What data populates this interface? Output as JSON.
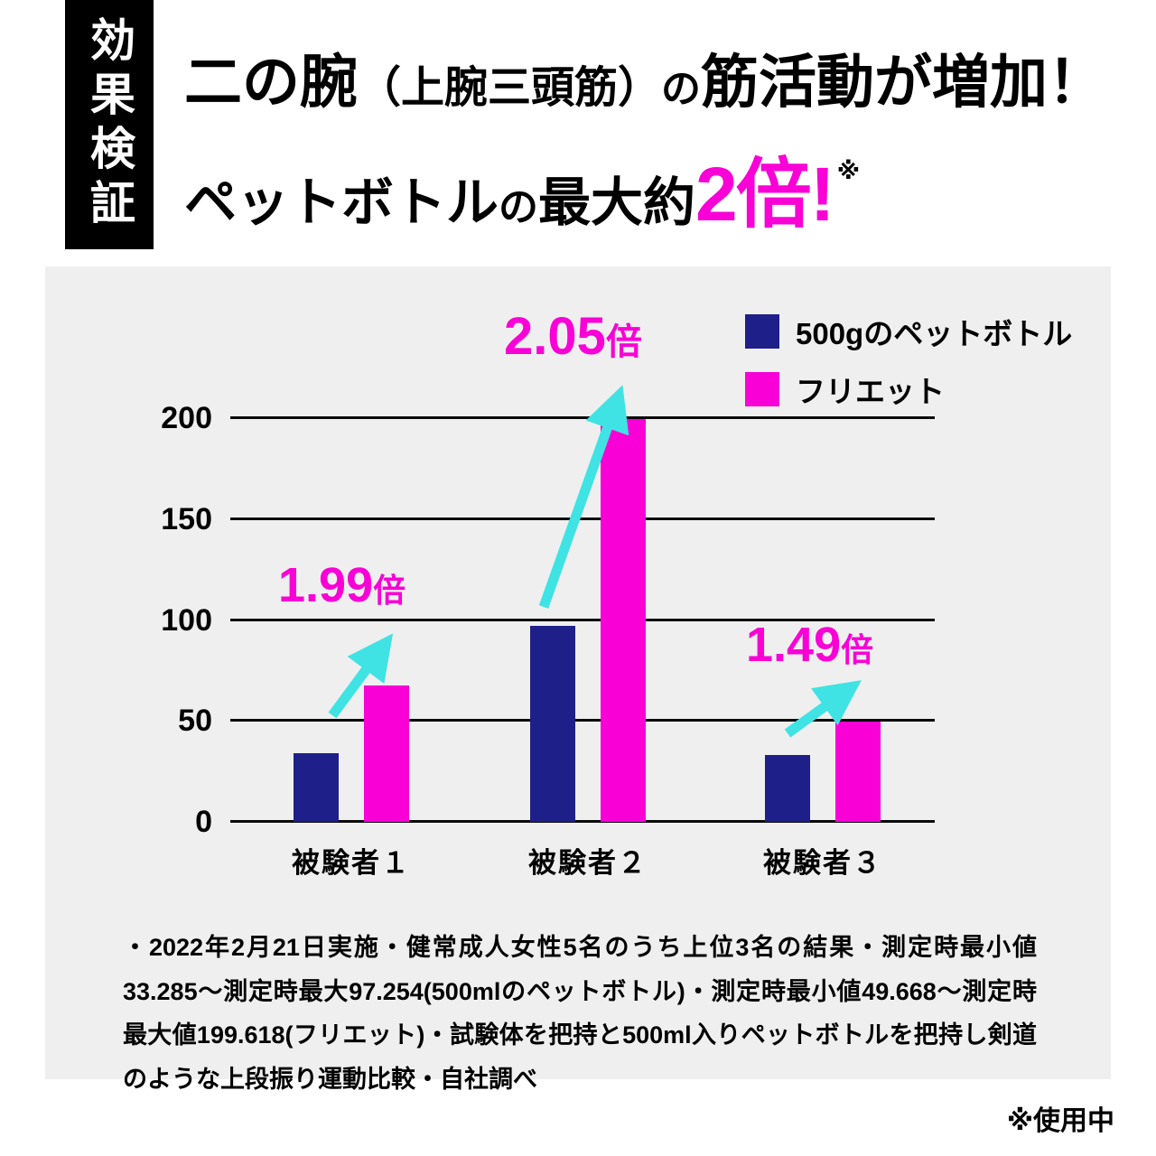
{
  "badge": {
    "label": "効果検証"
  },
  "headline": {
    "line1": {
      "seg1": "二の腕",
      "seg2": "（上腕三頭筋）",
      "seg3": "の",
      "seg4": "筋活動が増加！"
    },
    "line2": {
      "seg1": "ペットボトル",
      "seg2": "の",
      "seg3": "最大約",
      "highlight": "2倍!",
      "ref_mark": "※"
    }
  },
  "colors": {
    "magenta": "#f800d6",
    "navy": "#1f1f8a",
    "cyan_arrow": "#3fe3e3",
    "panel_bg": "#efefef"
  },
  "chart_data": {
    "type": "bar",
    "title": "",
    "xlabel": "",
    "ylabel": "",
    "categories": [
      "被験者１",
      "被験者２",
      "被験者３"
    ],
    "series": [
      {
        "name": "500gのペットボトル",
        "color": "#1f1f8a",
        "values": [
          34.0,
          97.254,
          33.285
        ]
      },
      {
        "name": "フリエット",
        "color": "#f800d6",
        "values": [
          67.7,
          199.618,
          49.668
        ]
      }
    ],
    "ylim": [
      0,
      200
    ],
    "yticks": [
      0,
      50,
      100,
      150,
      200
    ],
    "grid": true,
    "legend_position": "top-right",
    "annotations": [
      {
        "value": "1.99",
        "suffix": "倍",
        "target": "被験者１"
      },
      {
        "value": "2.05",
        "suffix": "倍",
        "target": "被験者２"
      },
      {
        "value": "1.49",
        "suffix": "倍",
        "target": "被験者３"
      }
    ]
  },
  "footnote": "・2022年2月21日実施・健常成人女性5名のうち上位3名の結果・測定時最小値33.285～測定時最大97.254(500mlのペットボトル)・測定時最小値49.668～測定時最大値199.618(フリエット)・試験体を把持と500ml入りペットボトルを把持し剣道のような上段振り運動比較・自社調べ",
  "usage_note": "※使用中"
}
